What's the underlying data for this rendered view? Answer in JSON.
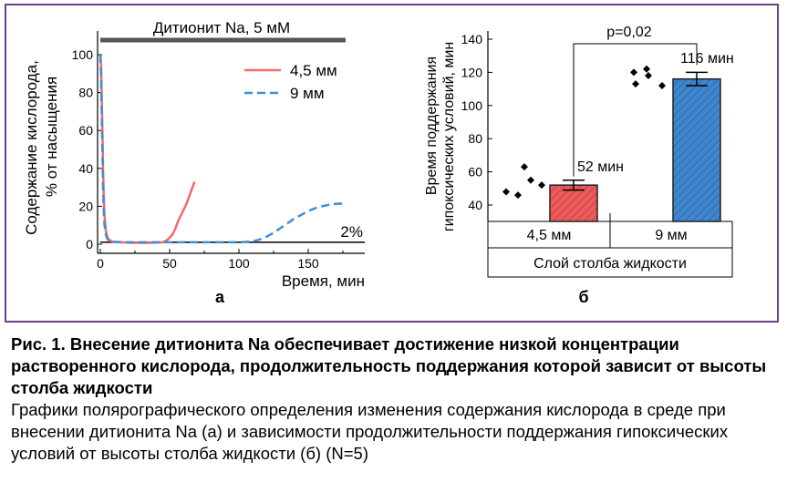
{
  "chart_data": [
    {
      "type": "line",
      "panel_label": "а",
      "annotation_bar": "Дитионит Na, 5 мМ",
      "threshold_label": "2%",
      "threshold_value": 2,
      "xlabel": "Время, мин",
      "ylabel_line1": "Содержание кислорода,",
      "ylabel_line2": "% от насыщения",
      "xlim": [
        -8,
        180
      ],
      "ylim": [
        0,
        110
      ],
      "xticks": [
        "0",
        "50",
        "100",
        "150"
      ],
      "xtick_values": [
        0,
        50,
        100,
        150
      ],
      "yticks": [
        "0",
        "20",
        "40",
        "60",
        "80",
        "100"
      ],
      "ytick_values": [
        0,
        20,
        40,
        60,
        80,
        100
      ],
      "legend_placement": "top-right",
      "series": [
        {
          "name": "4,5 мм",
          "color": "#f06b6b",
          "style": "solid",
          "x": [
            0,
            0.5,
            1,
            1.5,
            2,
            2.5,
            3,
            4,
            5,
            6,
            8,
            10,
            15,
            20,
            25,
            30,
            35,
            40,
            45,
            48,
            50,
            52,
            54,
            56,
            58,
            60,
            62,
            64,
            66,
            68
          ],
          "y": [
            100,
            95,
            80,
            60,
            40,
            25,
            15,
            7,
            4,
            2.5,
            1.6,
            1.2,
            1,
            0.8,
            0.7,
            0.7,
            0.7,
            0.8,
            1,
            2,
            3.5,
            5,
            8,
            12,
            15,
            18,
            21,
            25,
            29,
            33
          ]
        },
        {
          "name": "9 мм",
          "color": "#3f8fd6",
          "style": "dashed",
          "x": [
            0,
            0.5,
            1,
            1.5,
            2,
            2.5,
            3,
            4,
            5,
            6,
            8,
            10,
            20,
            40,
            60,
            80,
            100,
            105,
            110,
            115,
            120,
            125,
            130,
            135,
            140,
            145,
            150,
            155,
            160,
            165,
            170,
            175
          ],
          "y": [
            100,
            90,
            70,
            50,
            30,
            18,
            10,
            5,
            3,
            2,
            1.5,
            1.2,
            1,
            1,
            1,
            1,
            1,
            1.2,
            1.5,
            2.5,
            4,
            6,
            8.5,
            11,
            13.5,
            15.5,
            17.5,
            19,
            20,
            20.8,
            21.3,
            21.5
          ]
        }
      ]
    },
    {
      "type": "bar",
      "panel_label": "б",
      "ylabel_line1": "Время поддержания",
      "ylabel_line2": "гипоксических условий, мин",
      "ylim": [
        30,
        150
      ],
      "yticks": [
        "40",
        "60",
        "80",
        "100",
        "120",
        "140"
      ],
      "ytick_values": [
        40,
        60,
        80,
        100,
        120,
        140
      ],
      "categories": [
        "4,5 мм",
        "9 мм"
      ],
      "group_label": "Слой столба жидкости",
      "values": [
        52,
        116
      ],
      "errors": [
        3,
        4
      ],
      "value_labels": [
        "52 мин",
        "116 мин"
      ],
      "bar_colors": [
        "#ee5a5a",
        "#3f86cf"
      ],
      "points": [
        [
          48,
          46,
          63,
          55,
          52
        ],
        [
          120,
          122,
          113,
          118,
          112
        ]
      ],
      "significance": "p=0,02"
    }
  ],
  "caption": {
    "title": "Рис. 1. Внесение дитионита Na обеспечивает достижение низкой концентрации растворенного кислорода, продолжительность поддержания которой зависит от высоты столба жидкости",
    "body": "Графики полярографического определения изменения содержания кислорода в среде при внесении дитионита Na (а) и зависимости продолжительности поддержания гипоксических условий от высоты столба жидкости (б) (N=5)"
  }
}
